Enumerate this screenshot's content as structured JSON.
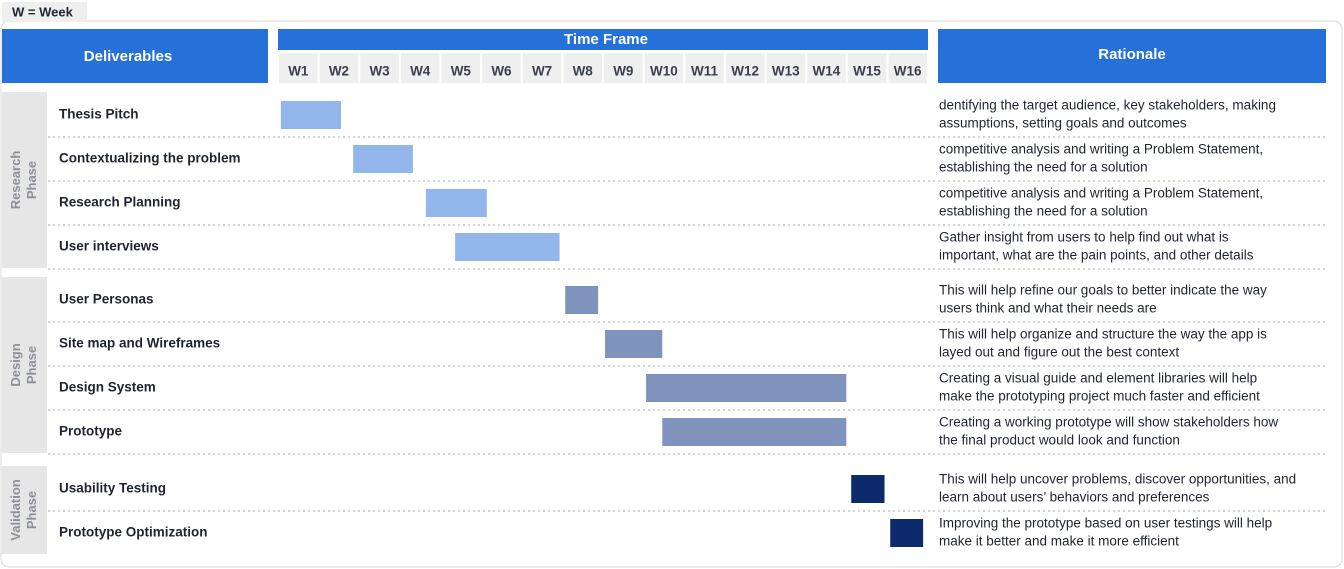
{
  "chart_data": {
    "type": "gantt",
    "legend_note": "W = Week",
    "headers": {
      "deliverables": "Deliverables",
      "time_frame": "Time Frame",
      "rationale": "Rationale"
    },
    "categories": [
      "W1",
      "W2",
      "W3",
      "W4",
      "W5",
      "W6",
      "W7",
      "W8",
      "W9",
      "W10",
      "W11",
      "W12",
      "W13",
      "W14",
      "W15",
      "W16"
    ],
    "xlim": [
      0,
      16
    ],
    "phases": [
      {
        "label_lines": [
          "Research",
          "Phase"
        ],
        "color": "#93b7ea",
        "tasks": [
          {
            "name": "Thesis Pitch",
            "start": 0.07,
            "end": 1.55,
            "rationale": [
              "dentifying the target audience, key stakeholders, making",
              "assumptions, setting goals and outcomes"
            ]
          },
          {
            "name": "Contextualizing the problem",
            "start": 1.85,
            "end": 3.32,
            "rationale": [
              "competitive analysis and writing a Problem Statement,",
              "establishing the need for a solution"
            ]
          },
          {
            "name": "Research Planning",
            "start": 3.64,
            "end": 5.14,
            "rationale": [
              "competitive analysis and writing a Problem Statement,",
              "establishing the need for a solution"
            ]
          },
          {
            "name": "User interviews",
            "start": 4.36,
            "end": 6.93,
            "rationale": [
              "Gather insight from users to help find out what is",
              "important, what are the pain points, and other details"
            ]
          }
        ]
      },
      {
        "label_lines": [
          "Design",
          "Phase"
        ],
        "color": "#7f93bd",
        "tasks": [
          {
            "name": "User Personas",
            "start": 7.07,
            "end": 7.88,
            "rationale": [
              "This will help refine our goals to better indicate the way",
              "users think and what their needs are"
            ]
          },
          {
            "name": "Site map and Wireframes",
            "start": 8.05,
            "end": 9.46,
            "rationale": [
              "This will help  organize and structure the way the app is",
              "layed out and figure out the best context"
            ]
          },
          {
            "name": "Design System",
            "start": 9.06,
            "end": 13.99,
            "rationale": [
              "Creating a visual guide and element libraries will help",
              "make the prototyping project much faster and efficient"
            ]
          },
          {
            "name": "Prototype",
            "start": 9.46,
            "end": 13.99,
            "rationale": [
              "Creating a working prototype will show stakeholders how",
              "the final product would look and function"
            ]
          }
        ]
      },
      {
        "label_lines": [
          "Validation",
          "Phase"
        ],
        "color": "#0d2b6c",
        "tasks": [
          {
            "name": "Usability Testing",
            "start": 14.11,
            "end": 14.93,
            "rationale": [
              "This will help uncover problems, discover opportunities, and",
              "learn about users’ behaviors and preferences"
            ]
          },
          {
            "name": "Prototype Optimization",
            "start": 15.07,
            "end": 15.88,
            "rationale": [
              "Improving the prototype based on user testings will help",
              "make it better and make it more efficient"
            ]
          }
        ]
      }
    ]
  }
}
